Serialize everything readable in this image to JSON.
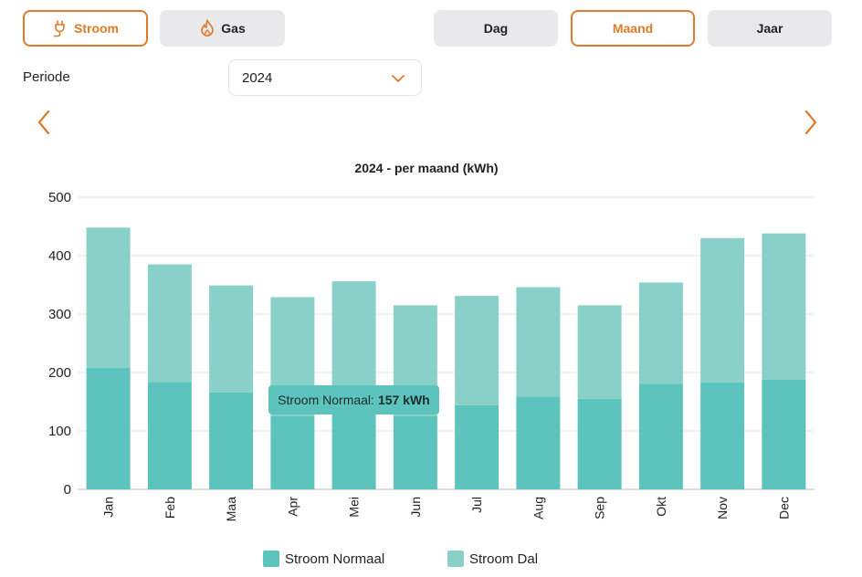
{
  "energy_tabs": [
    {
      "label": "Stroom",
      "active": true,
      "icon": "plug-icon"
    },
    {
      "label": "Gas",
      "active": false,
      "icon": "flame-icon"
    }
  ],
  "period_tabs": [
    {
      "label": "Dag",
      "active": false
    },
    {
      "label": "Maand",
      "active": true
    },
    {
      "label": "Jaar",
      "active": false
    }
  ],
  "period": {
    "label": "Periode",
    "selected": "2024"
  },
  "tooltip": {
    "label": "Stroom Normaal:",
    "value": "157 kWh"
  },
  "colors": {
    "accent": "#e07a2a",
    "normaal": "#5cc4bd",
    "dal": "#89d1c8",
    "inactive": "#e9e9ec"
  },
  "chart_data": {
    "type": "bar",
    "stacked": true,
    "title": "2024 - per maand (kWh)",
    "categories": [
      "Jan",
      "Feb",
      "Maa",
      "Apr",
      "Mei",
      "Jun",
      "Jul",
      "Aug",
      "Sep",
      "Okt",
      "Nov",
      "Dec"
    ],
    "series": [
      {
        "name": "Stroom Normaal",
        "values": [
          208,
          184,
          166,
          125,
          157,
          125,
          144,
          159,
          155,
          181,
          183,
          188
        ]
      },
      {
        "name": "Stroom Dal",
        "values": [
          240,
          201,
          183,
          204,
          199,
          190,
          187,
          187,
          160,
          173,
          247,
          250
        ]
      }
    ],
    "ylim": [
      0,
      500
    ],
    "yticks": [
      0,
      100,
      200,
      300,
      400,
      500
    ],
    "grid": true,
    "legend": "bottom",
    "tooltip_category": "Mei"
  }
}
